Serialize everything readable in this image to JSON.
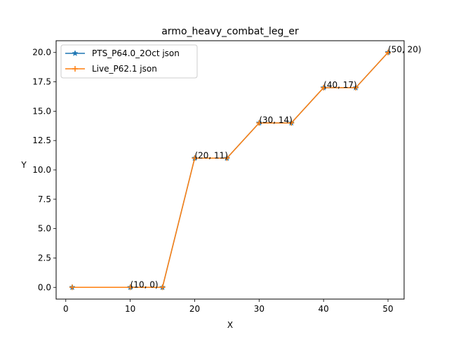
{
  "chart_data": {
    "type": "line",
    "title": "armo_heavy_combat_leg_er",
    "xlabel": "X",
    "ylabel": "Y",
    "xlim": [
      -1.5,
      52.5
    ],
    "ylim": [
      -1.0,
      21.0
    ],
    "xticks": [
      0,
      10,
      20,
      30,
      40,
      50
    ],
    "yticks": [
      0.0,
      2.5,
      5.0,
      7.5,
      10.0,
      12.5,
      15.0,
      17.5,
      20.0
    ],
    "xtick_labels": [
      "0",
      "10",
      "20",
      "30",
      "40",
      "50"
    ],
    "ytick_labels": [
      "0.0",
      "2.5",
      "5.0",
      "7.5",
      "10.0",
      "12.5",
      "15.0",
      "17.5",
      "20.0"
    ],
    "grid": false,
    "legend_position": "top-left",
    "series": [
      {
        "name": "PTS_P64.0_2Oct json",
        "color": "#1f77b4",
        "marker": "star",
        "x": [
          1,
          10,
          15,
          20,
          25,
          30,
          35,
          40,
          45,
          50
        ],
        "y": [
          0,
          0,
          0,
          11,
          11,
          14,
          14,
          17,
          17,
          20
        ]
      },
      {
        "name": "Live_P62.1 json",
        "color": "#ff7f0e",
        "marker": "plus",
        "x": [
          1,
          10,
          15,
          20,
          25,
          30,
          35,
          40,
          45,
          50
        ],
        "y": [
          0,
          0,
          0,
          11,
          11,
          14,
          14,
          17,
          17,
          20
        ]
      }
    ],
    "annotations": [
      {
        "text": "(10, 0)",
        "x": 10,
        "y": 0
      },
      {
        "text": "(20, 11)",
        "x": 20,
        "y": 11
      },
      {
        "text": "(30, 14)",
        "x": 30,
        "y": 14
      },
      {
        "text": "(40, 17)",
        "x": 40,
        "y": 17
      },
      {
        "text": "(50, 20)",
        "x": 50,
        "y": 20
      }
    ]
  }
}
